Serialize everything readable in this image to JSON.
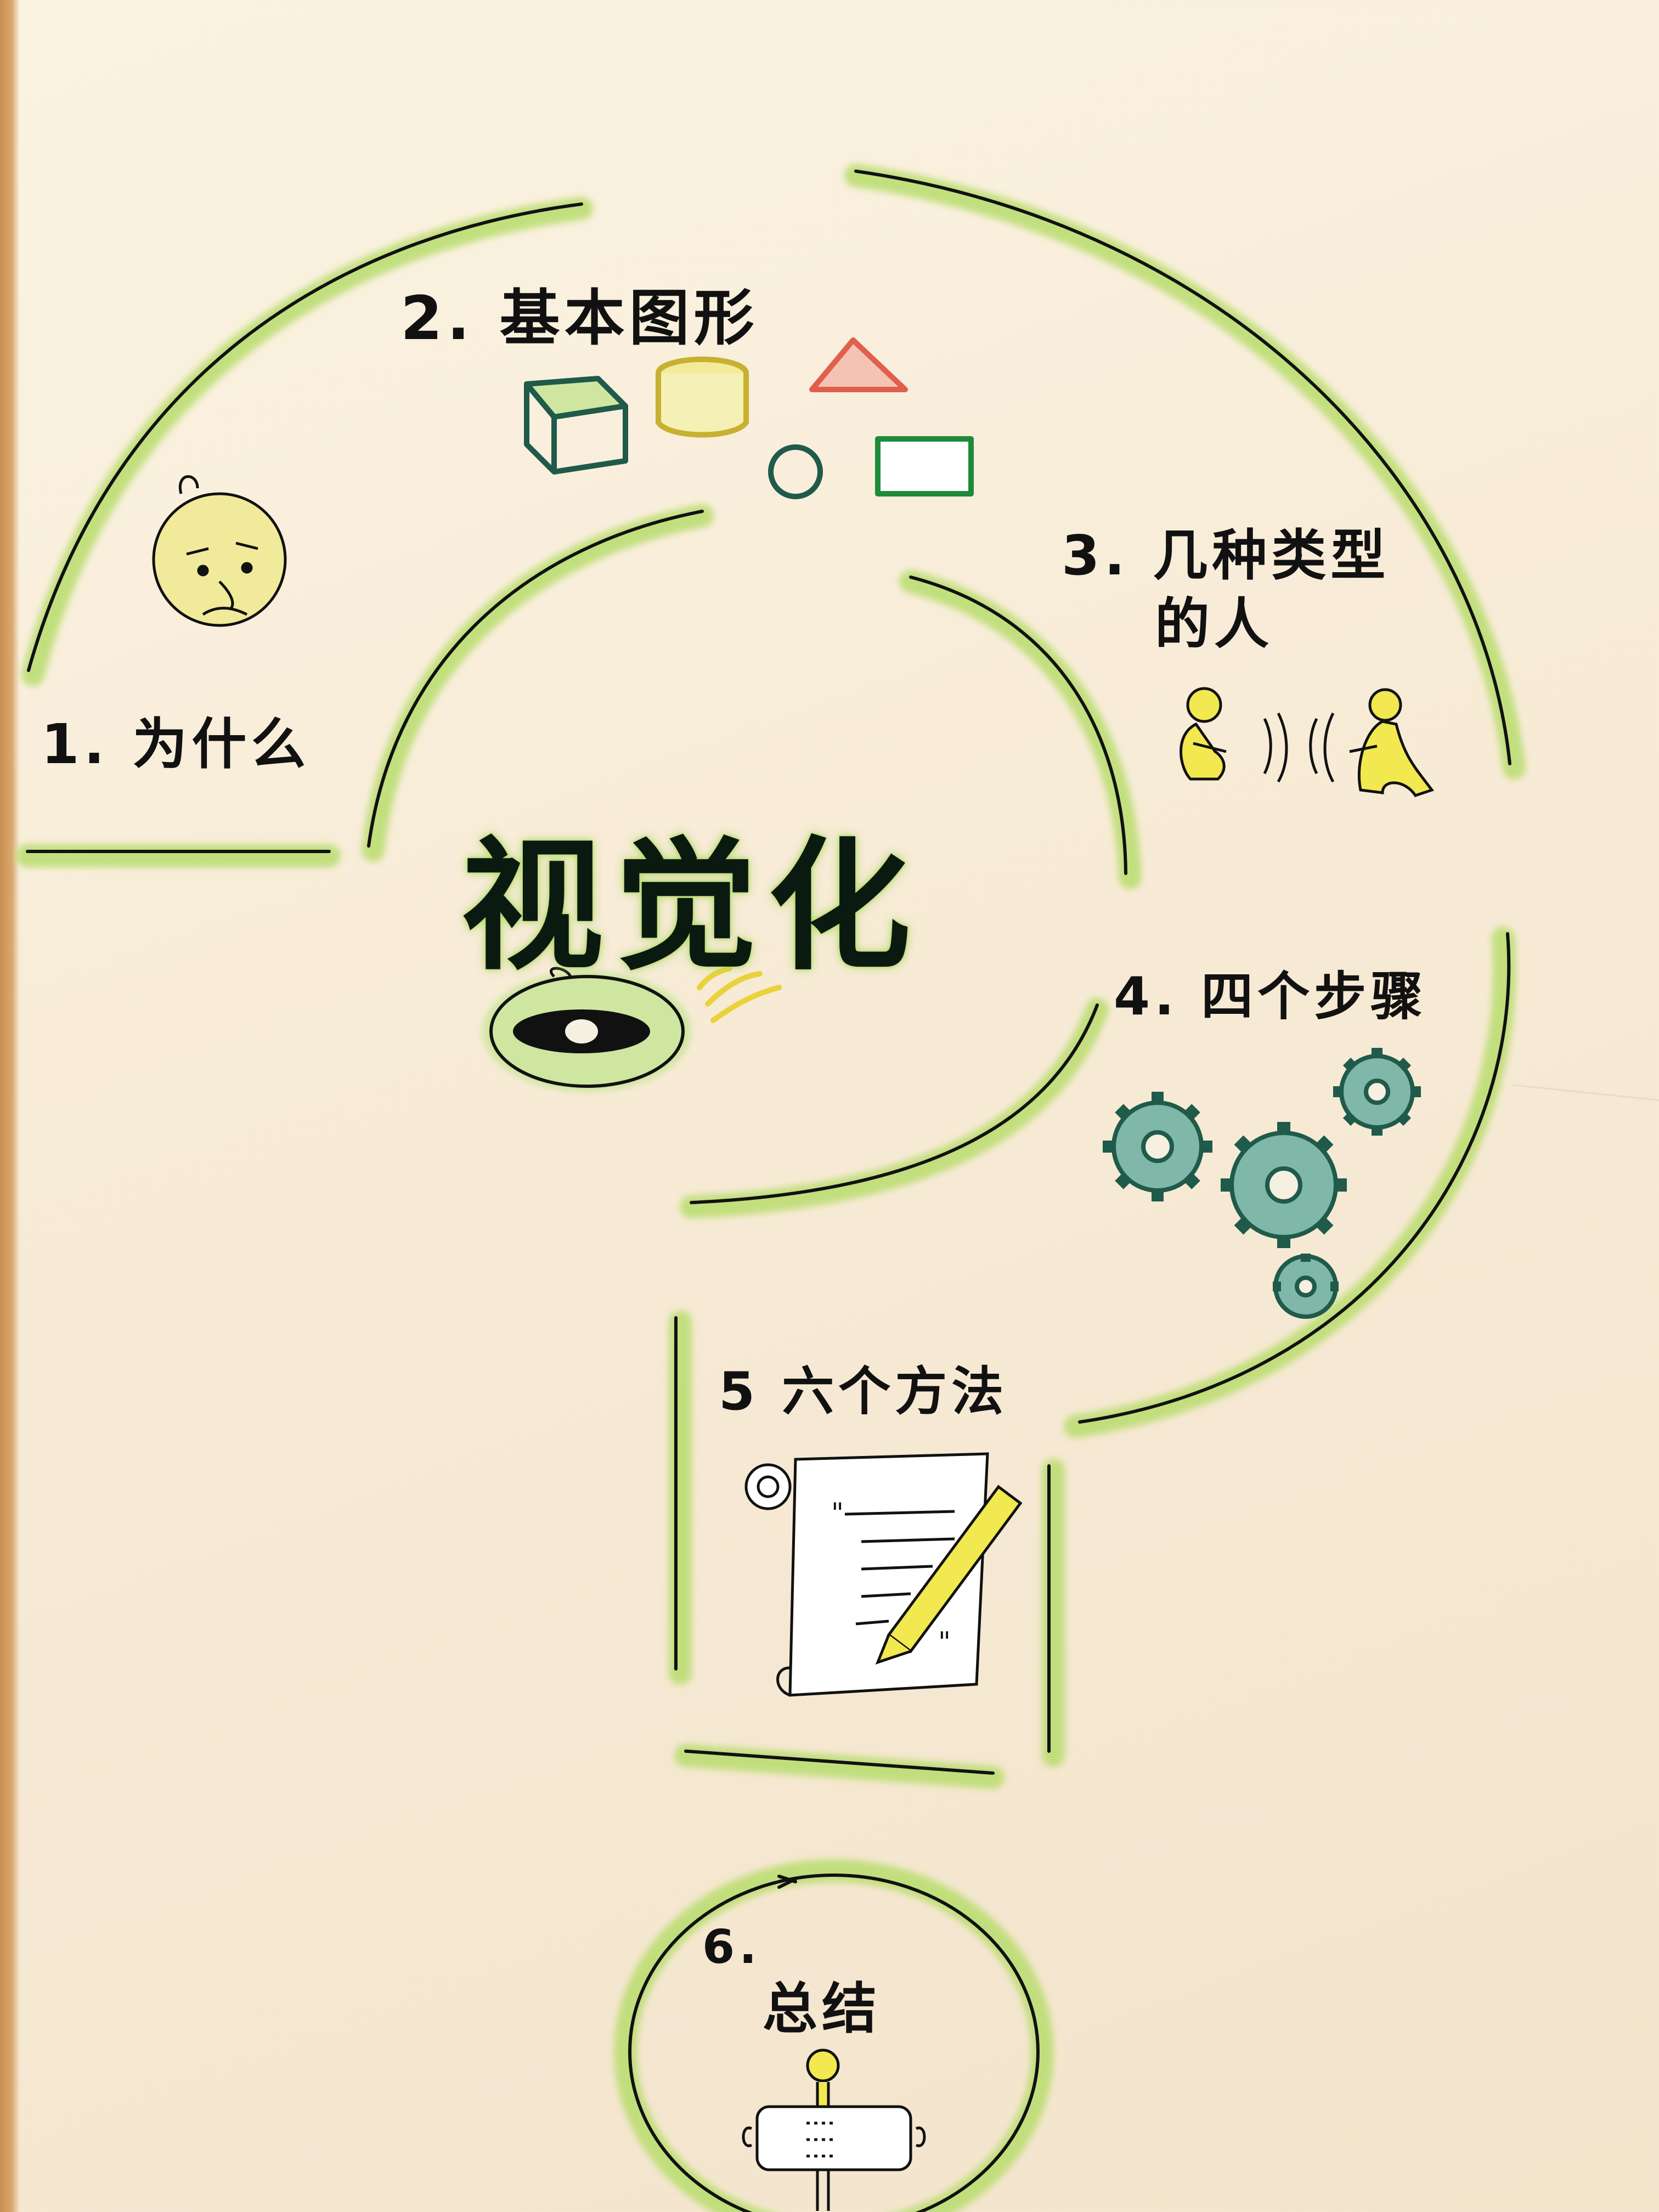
{
  "title": "视觉化",
  "sections": [
    {
      "number": "1.",
      "label": "为什么",
      "icon": "puzzled-face-icon"
    },
    {
      "number": "2.",
      "label": "基本图形",
      "icon": "basic-shapes-icon"
    },
    {
      "number": "3.",
      "label": "几种类型",
      "label2": "的人",
      "icon": "two-people-talking-icon"
    },
    {
      "number": "4.",
      "label": "四个步骤",
      "icon": "gears-icon"
    },
    {
      "number": "5",
      "label": "六个方法",
      "icon": "scroll-with-pen-icon"
    },
    {
      "number": "6.",
      "label": "总结",
      "icon": "person-holding-list-icon"
    }
  ],
  "colors": {
    "highlight_green": "#b9dd6e",
    "ink": "#111111",
    "shape_teal": "#1f5a4a",
    "shape_yellow": "#e9e07a",
    "shape_red": "#e0604d",
    "shape_green": "#1f8a3a",
    "face_yellow": "#f0ea9a",
    "gear_teal": "#2f7f74"
  }
}
